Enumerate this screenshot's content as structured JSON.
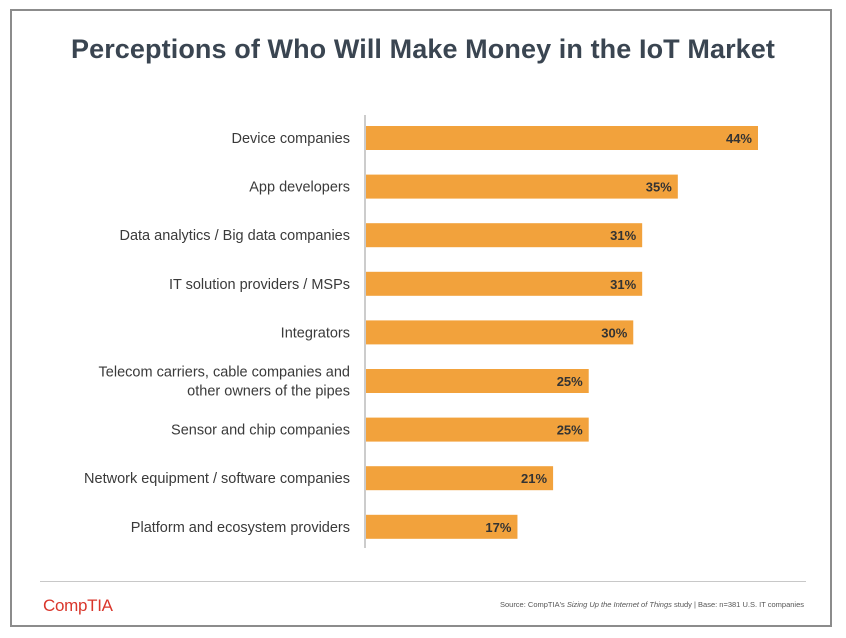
{
  "chart_data": {
    "type": "bar",
    "orientation": "horizontal",
    "title": "Perceptions of Who Will Make Money in the IoT Market",
    "categories": [
      [
        "Device companies"
      ],
      [
        "App developers"
      ],
      [
        "Data analytics / Big data companies"
      ],
      [
        "IT solution providers / MSPs"
      ],
      [
        "Integrators"
      ],
      [
        "Telecom carriers, cable companies and",
        "other owners of the pipes"
      ],
      [
        "Sensor and chip companies"
      ],
      [
        "Network equipment / software companies"
      ],
      [
        "Platform and ecosystem providers"
      ]
    ],
    "values": [
      44,
      35,
      31,
      31,
      30,
      25,
      25,
      21,
      17
    ],
    "value_suffix": "%",
    "xlim": [
      0,
      50
    ],
    "bar_color": "#f2a23c",
    "label_color": "#3a3a3a",
    "axis_color": "#9a9a9a",
    "grid": false
  },
  "footer": {
    "logo": "CompTIA",
    "logo_color": "#d9362b",
    "source_prefix": "Source: CompTIA's ",
    "source_study": "Sizing Up the Internet of Things",
    "source_suffix": " study | Base: n=381 U.S. IT companies"
  }
}
